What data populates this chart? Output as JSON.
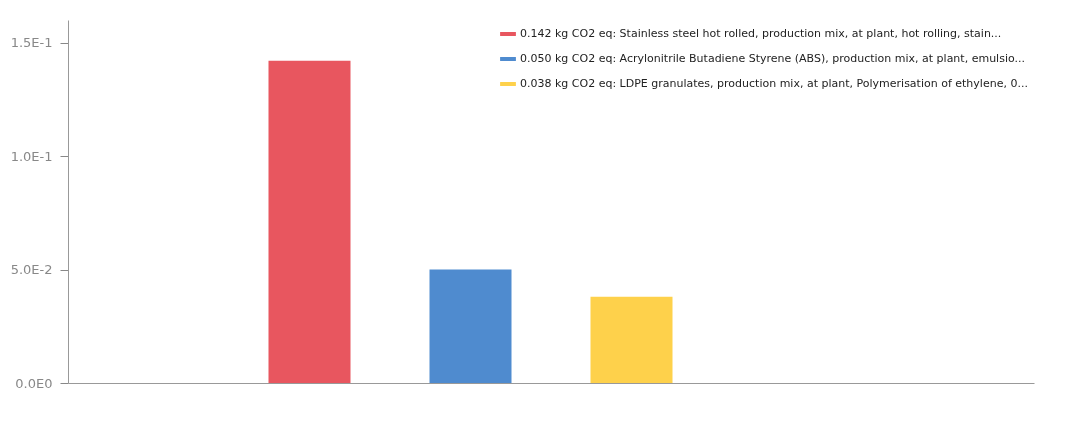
{
  "chart_data": {
    "type": "bar",
    "categories": [
      null,
      null,
      null,
      null,
      null,
      null
    ],
    "series": [
      {
        "name": "0.142 kg CO2 eq: Stainless steel hot rolled, production mix, at plant, hot rolling, stain...",
        "color": "#e8565f",
        "values": [
          null,
          0.142,
          null,
          null,
          null,
          null
        ]
      },
      {
        "name": "0.050 kg CO2 eq: Acrylonitrile Butadiene Styrene (ABS), production mix, at plant, emulsio...",
        "color": "#4f8bcf",
        "values": [
          null,
          null,
          0.05,
          null,
          null,
          null
        ]
      },
      {
        "name": "0.038 kg CO2 eq: LDPE granulates, production mix, at plant, Polymerisation of ethylene, 0...",
        "color": "#fed14b",
        "values": [
          null,
          null,
          null,
          0.038,
          null,
          null
        ]
      }
    ],
    "ylim": [
      0,
      0.16
    ],
    "yticks": [
      {
        "value": 0,
        "label": "0.0E0"
      },
      {
        "value": 0.05,
        "label": "5.0E-2"
      },
      {
        "value": 0.1,
        "label": "1.0E-1"
      },
      {
        "value": 0.15,
        "label": "1.5E-1"
      }
    ],
    "tick_labels": "y",
    "grid": false,
    "legend": "top right"
  }
}
